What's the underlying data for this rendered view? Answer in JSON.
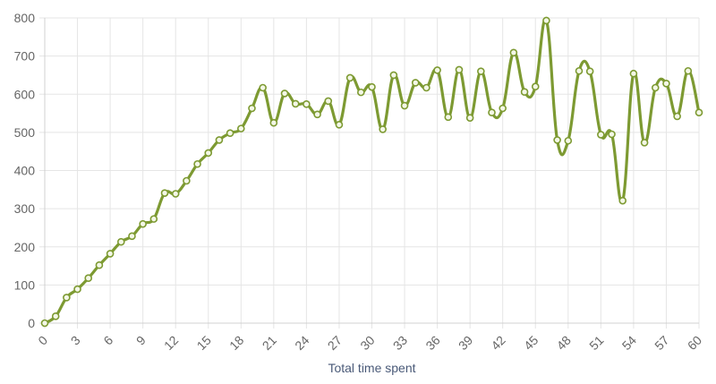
{
  "chart_data": {
    "type": "line",
    "title": "",
    "xlabel": "Total time spent",
    "ylabel": "",
    "xlim": [
      0,
      60
    ],
    "ylim": [
      0,
      800
    ],
    "x_ticks": [
      0,
      3,
      6,
      9,
      12,
      15,
      18,
      21,
      24,
      27,
      30,
      33,
      36,
      39,
      42,
      45,
      48,
      51,
      54,
      57,
      60
    ],
    "y_ticks": [
      0,
      100,
      200,
      300,
      400,
      500,
      600,
      700,
      800
    ],
    "grid": true,
    "legend": "none",
    "colors": {
      "line": "#7d9a32",
      "grid": "#e5e5e5",
      "axis": "#d0d0d0",
      "tick_text": "#666666",
      "title_text": "#4a5a78"
    },
    "series": [
      {
        "x": [
          0,
          1,
          2,
          3,
          4,
          5,
          6,
          7,
          8,
          9,
          10,
          11,
          12,
          13,
          14,
          15,
          16,
          17,
          18,
          19,
          20,
          21,
          22,
          23,
          24,
          25,
          26,
          27,
          28,
          29,
          30,
          31,
          32,
          33,
          34,
          35,
          36,
          37,
          38,
          39,
          40,
          41,
          42,
          43,
          44,
          45,
          46,
          47,
          48,
          49,
          50,
          51,
          52,
          53,
          54,
          55,
          56,
          57,
          58,
          59,
          60
        ],
        "values": [
          0,
          18,
          67,
          89,
          118,
          152,
          182,
          213,
          228,
          260,
          273,
          341,
          339,
          373,
          417,
          446,
          480,
          498,
          510,
          563,
          617,
          525,
          602,
          575,
          574,
          547,
          582,
          520,
          643,
          605,
          619,
          508,
          650,
          570,
          630,
          617,
          663,
          540,
          664,
          538,
          660,
          552,
          563,
          709,
          606,
          620,
          793,
          480,
          478,
          661,
          660,
          494,
          495,
          321,
          654,
          473,
          617,
          628,
          542,
          661,
          552
        ]
      }
    ]
  }
}
